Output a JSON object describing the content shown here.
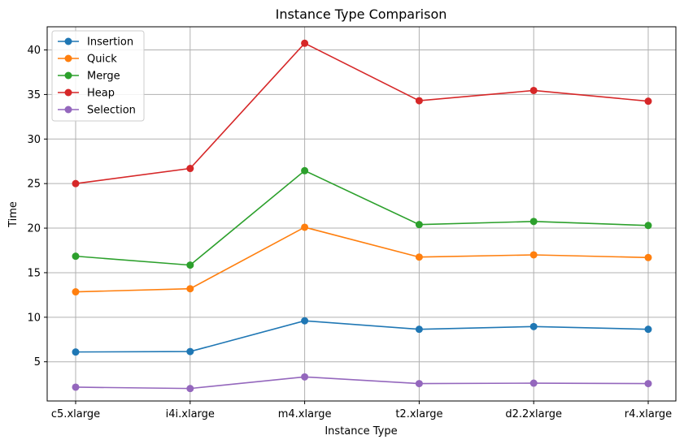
{
  "chart_data": {
    "type": "line",
    "title": "Instance Type Comparison",
    "xlabel": "Instance Type",
    "ylabel": "Time",
    "categories": [
      "c5.xlarge",
      "i4i.xlarge",
      "m4.xlarge",
      "t2.xlarge",
      "d2.2xlarge",
      "r4.xlarge"
    ],
    "ylim": [
      0.6,
      42.6
    ],
    "yticks": [
      5,
      10,
      15,
      20,
      25,
      30,
      35,
      40
    ],
    "grid": true,
    "legend_position": "top-left",
    "series": [
      {
        "name": "Insertion",
        "color": "#1f77b4",
        "values": [
          6.1,
          6.15,
          9.6,
          8.65,
          8.95,
          8.65
        ]
      },
      {
        "name": "Quick",
        "color": "#ff7f0e",
        "values": [
          12.85,
          13.2,
          20.1,
          16.75,
          17.0,
          16.7
        ]
      },
      {
        "name": "Merge",
        "color": "#2ca02c",
        "values": [
          16.85,
          15.85,
          26.45,
          20.4,
          20.75,
          20.3
        ]
      },
      {
        "name": "Heap",
        "color": "#d62728",
        "values": [
          25.0,
          26.7,
          40.75,
          34.3,
          35.45,
          34.25
        ]
      },
      {
        "name": "Selection",
        "color": "#9467bd",
        "values": [
          2.15,
          2.0,
          3.3,
          2.55,
          2.6,
          2.55
        ]
      }
    ]
  }
}
